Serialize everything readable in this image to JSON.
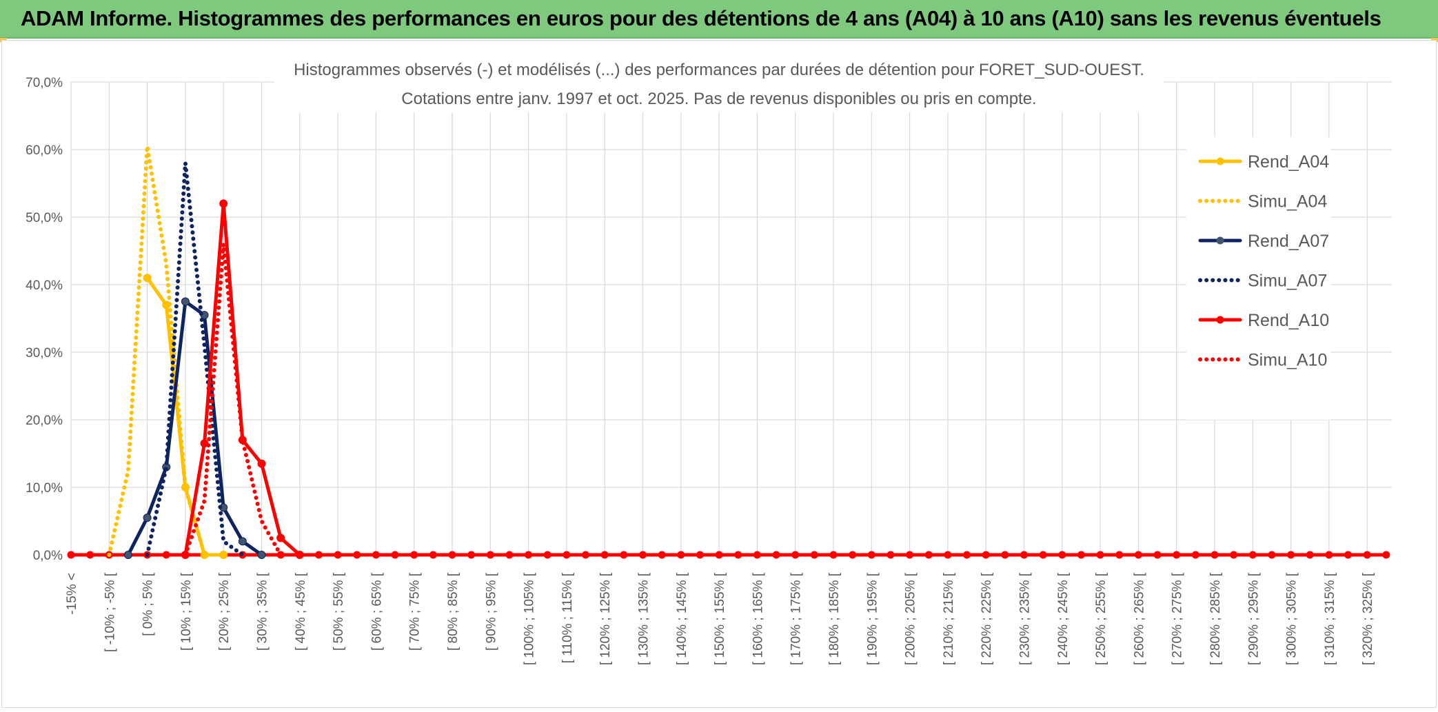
{
  "banner": {
    "title": "ADAM Informe. Histogrammes des performances en euros pour des détentions de 4 ans (A04) à 10 ans (A10) sans les revenus éventuels"
  },
  "colors": {
    "banner_bg": "#7fc97f",
    "a04": "#ffc000",
    "a07": "#0d2461",
    "a10": "#ff0000",
    "grid": "#d9d9d9",
    "text": "#595959"
  },
  "chart_data": {
    "type": "line",
    "title_line1": "Histogrammes observés (-) et modélisés (...) des performances par durées de détention pour FORET_SUD-OUEST.",
    "title_line2": "Cotations entre janv. 1997 et oct. 2025. Pas de revenus disponibles ou pris en compte.",
    "y_ticks": [
      "0,0%",
      "10,0%",
      "20,0%",
      "30,0%",
      "40,0%",
      "50,0%",
      "60,0%",
      "70,0%"
    ],
    "ylim": [
      0,
      70
    ],
    "grid": true,
    "legend_position": "right",
    "categories": [
      "-15% <",
      "[ -10% ; -5% [",
      "[ 0% ; 5% [",
      "[ 10% ; 15% [",
      "[ 20% ; 25% [",
      "[ 30% ; 35% [",
      "[ 40% ; 45% [",
      "[ 50% ; 55% [",
      "[ 60% ; 65% [",
      "[ 70% ; 75% [",
      "[ 80% ; 85% [",
      "[ 90% ; 95% [",
      "[ 100% ; 105% [",
      "[ 110% ; 115% [",
      "[ 120% ; 125% [",
      "[ 130% ; 135% [",
      "[ 140% ; 145% [",
      "[ 150% ; 155% [",
      "[ 160% ; 165% [",
      "[ 170% ; 175% [",
      "[ 180% ; 185% [",
      "[ 190% ; 195% [",
      "[ 200% ; 205% [",
      "[ 210% ; 215% [",
      "[ 220% ; 225% [",
      "[ 230% ; 235% [",
      "[ 240% ; 245% [",
      "[ 250% ; 255% [",
      "[ 260% ; 265% [",
      "[ 270% ; 275% [",
      "[ 280% ; 285% [",
      "[ 290% ; 295% [",
      "[ 300% ; 305% [",
      "[ 310% ; 315% [",
      "[ 320% ; 325% ["
    ],
    "points_per_category": 2,
    "total_points": 70,
    "series": [
      {
        "name": "Rend_A04",
        "style": "solid",
        "markers": true,
        "color": "#ffc000",
        "points": [
          [
            4,
            41.0
          ],
          [
            5,
            37.0
          ],
          [
            6,
            10.0
          ],
          [
            7,
            0.0
          ],
          [
            8,
            0.0
          ]
        ]
      },
      {
        "name": "Simu_A04",
        "style": "dotted",
        "markers": false,
        "color": "#ffc000",
        "points": [
          [
            2,
            0.0
          ],
          [
            3,
            12.5
          ],
          [
            4,
            60.5
          ],
          [
            5,
            43.0
          ],
          [
            6,
            10.0
          ],
          [
            7,
            0.0
          ]
        ]
      },
      {
        "name": "Rend_A07",
        "style": "solid",
        "markers": true,
        "color": "#0d2461",
        "points": [
          [
            3,
            0.0
          ],
          [
            4,
            5.5
          ],
          [
            5,
            13.0
          ],
          [
            6,
            37.5
          ],
          [
            7,
            35.5
          ],
          [
            8,
            7.0
          ],
          [
            9,
            2.0
          ],
          [
            10,
            0.0
          ]
        ]
      },
      {
        "name": "Simu_A07",
        "style": "dotted",
        "markers": false,
        "color": "#0d2461",
        "points": [
          [
            4,
            0.0
          ],
          [
            5,
            13.0
          ],
          [
            6,
            58.0
          ],
          [
            7,
            31.0
          ],
          [
            8,
            2.0
          ],
          [
            9,
            0.0
          ]
        ]
      },
      {
        "name": "Rend_A10",
        "style": "solid",
        "markers": true,
        "color": "#ff0000",
        "points": [
          [
            6,
            0.0
          ],
          [
            7,
            16.5
          ],
          [
            8,
            52.0
          ],
          [
            9,
            17.0
          ],
          [
            10,
            13.5
          ],
          [
            11,
            2.5
          ],
          [
            12,
            0.0
          ]
        ]
      },
      {
        "name": "Simu_A10",
        "style": "dotted",
        "markers": false,
        "color": "#ff0000",
        "points": [
          [
            6,
            0.0
          ],
          [
            7,
            8.0
          ],
          [
            8,
            46.0
          ],
          [
            9,
            17.0
          ],
          [
            10,
            5.0
          ],
          [
            11,
            0.0
          ]
        ]
      }
    ],
    "baseline_series": "Rend_A10",
    "baseline_value": 0.0
  }
}
